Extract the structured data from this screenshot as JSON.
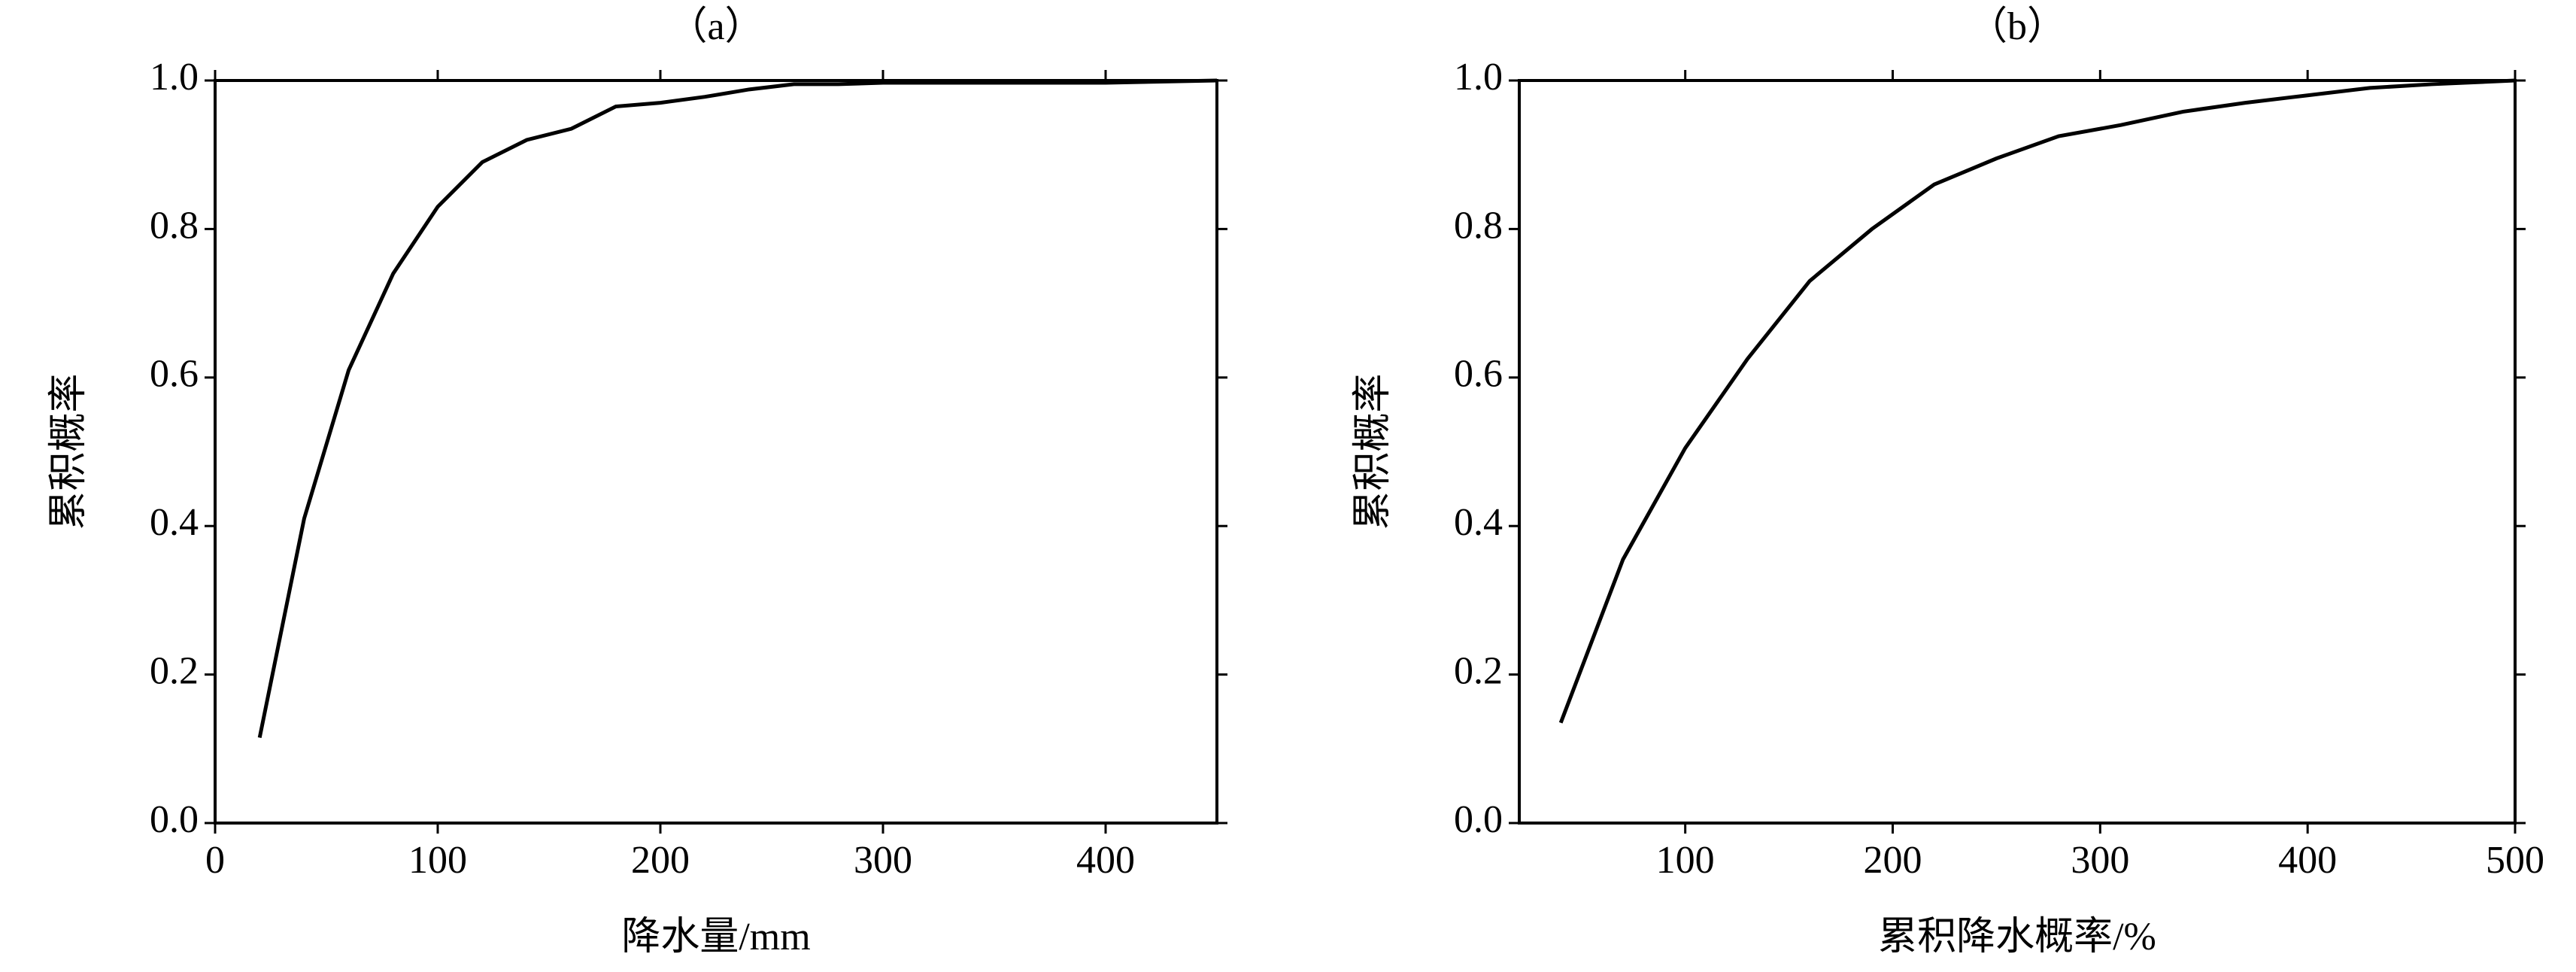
{
  "chart_data": [
    {
      "type": "line",
      "title": "（a）",
      "x_label": "降水量/mm",
      "y_label": "累积概率",
      "x": [
        20,
        40,
        60,
        80,
        100,
        120,
        140,
        160,
        180,
        200,
        220,
        240,
        260,
        280,
        300,
        400,
        450
      ],
      "series": [
        {
          "name": "累积概率",
          "color": "#000000",
          "values": [
            0.115,
            0.41,
            0.61,
            0.74,
            0.83,
            0.89,
            0.92,
            0.935,
            0.965,
            0.97,
            0.978,
            0.988,
            0.995,
            0.995,
            0.997,
            0.997,
            1.0
          ]
        }
      ],
      "xlim": [
        0,
        450
      ],
      "xticks": [
        0,
        100,
        200,
        300,
        400
      ],
      "ylim": [
        0,
        1
      ],
      "yticks": [
        {
          "value": 0,
          "label": "0.0"
        },
        0.2,
        0.4,
        0.6,
        0.8,
        {
          "value": 1,
          "label": "1.0"
        }
      ]
    },
    {
      "type": "line",
      "title": "（b）",
      "x_label": "累积降水概率/%",
      "y_label": "累积概率",
      "x": [
        40,
        70,
        100,
        130,
        160,
        190,
        220,
        250,
        280,
        310,
        340,
        370,
        400,
        430,
        460,
        500
      ],
      "series": [
        {
          "name": "累积概率",
          "color": "#000000",
          "values": [
            0.135,
            0.355,
            0.505,
            0.625,
            0.73,
            0.8,
            0.86,
            0.895,
            0.925,
            0.94,
            0.958,
            0.97,
            0.98,
            0.99,
            0.995,
            1.0
          ]
        }
      ],
      "xlim": [
        20,
        500
      ],
      "xticks": [
        100,
        200,
        300,
        400,
        500
      ],
      "ylim": [
        0,
        1
      ],
      "yticks": [
        {
          "value": 0,
          "label": "0.0"
        },
        0.2,
        0.4,
        0.6,
        0.8,
        {
          "value": 1,
          "label": "1.0"
        }
      ]
    }
  ]
}
